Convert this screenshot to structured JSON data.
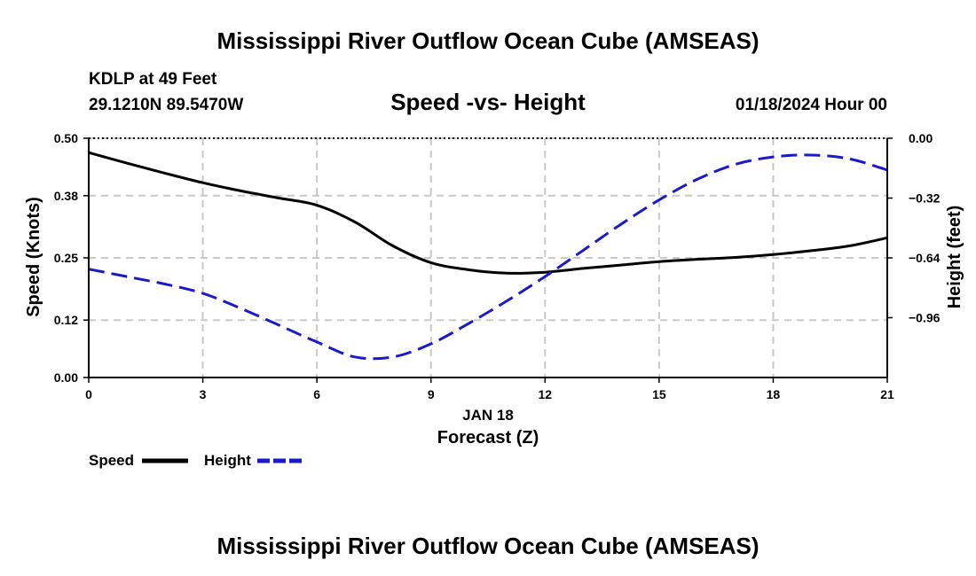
{
  "header": {
    "title": "Mississippi River Outflow Ocean Cube (AMSEAS)",
    "station": "KDLP at 49 Feet",
    "coords": "29.1210N  89.5470W",
    "subtitle": "Speed -vs- Height",
    "date": "01/18/2024 Hour 00"
  },
  "footer": {
    "title": "Mississippi River Outflow Ocean Cube (AMSEAS)"
  },
  "chart_data": {
    "type": "line",
    "title": "Speed -vs- Height",
    "xlabel": "Forecast (Z)",
    "date_label": "JAN 18",
    "ylabel_left": "Speed (Knots)",
    "ylabel_right": "Height (feet)",
    "xlim": [
      0,
      21
    ],
    "ylim_left": [
      0,
      0.5
    ],
    "ylim_right": [
      -1.28,
      0
    ],
    "x_ticks": [
      "0",
      "3",
      "6",
      "9",
      "12",
      "15",
      "18",
      "21"
    ],
    "y_left_ticks": [
      "0.00",
      "0.12",
      "0.25",
      "0.38",
      "0.50"
    ],
    "y_right_ticks": [
      "0.00",
      "−0.32",
      "−0.64",
      "−0.96"
    ],
    "grid": true,
    "legend": [
      "Speed",
      "Height"
    ],
    "colors": {
      "speed": "#000000",
      "height": "#1a1acd"
    },
    "series": [
      {
        "name": "Speed",
        "axis": "left",
        "x": [
          0,
          1,
          2,
          3,
          4,
          5,
          6,
          7,
          8,
          9,
          10,
          11,
          12,
          13,
          14,
          15,
          16,
          17,
          18,
          19,
          20,
          21
        ],
        "values": [
          0.47,
          0.448,
          0.427,
          0.407,
          0.39,
          0.375,
          0.36,
          0.325,
          0.275,
          0.24,
          0.225,
          0.218,
          0.22,
          0.228,
          0.235,
          0.242,
          0.247,
          0.251,
          0.257,
          0.265,
          0.275,
          0.292
        ]
      },
      {
        "name": "Height",
        "axis": "right",
        "x": [
          0,
          1,
          2,
          3,
          4,
          5,
          6,
          7,
          8,
          9,
          10,
          11,
          12,
          13,
          14,
          15,
          16,
          17,
          18,
          19,
          20,
          21
        ],
        "values": [
          -0.7,
          -0.74,
          -0.78,
          -0.83,
          -0.91,
          -1.0,
          -1.09,
          -1.17,
          -1.17,
          -1.1,
          -0.99,
          -0.87,
          -0.74,
          -0.6,
          -0.46,
          -0.33,
          -0.22,
          -0.14,
          -0.1,
          -0.09,
          -0.11,
          -0.17
        ]
      }
    ]
  }
}
